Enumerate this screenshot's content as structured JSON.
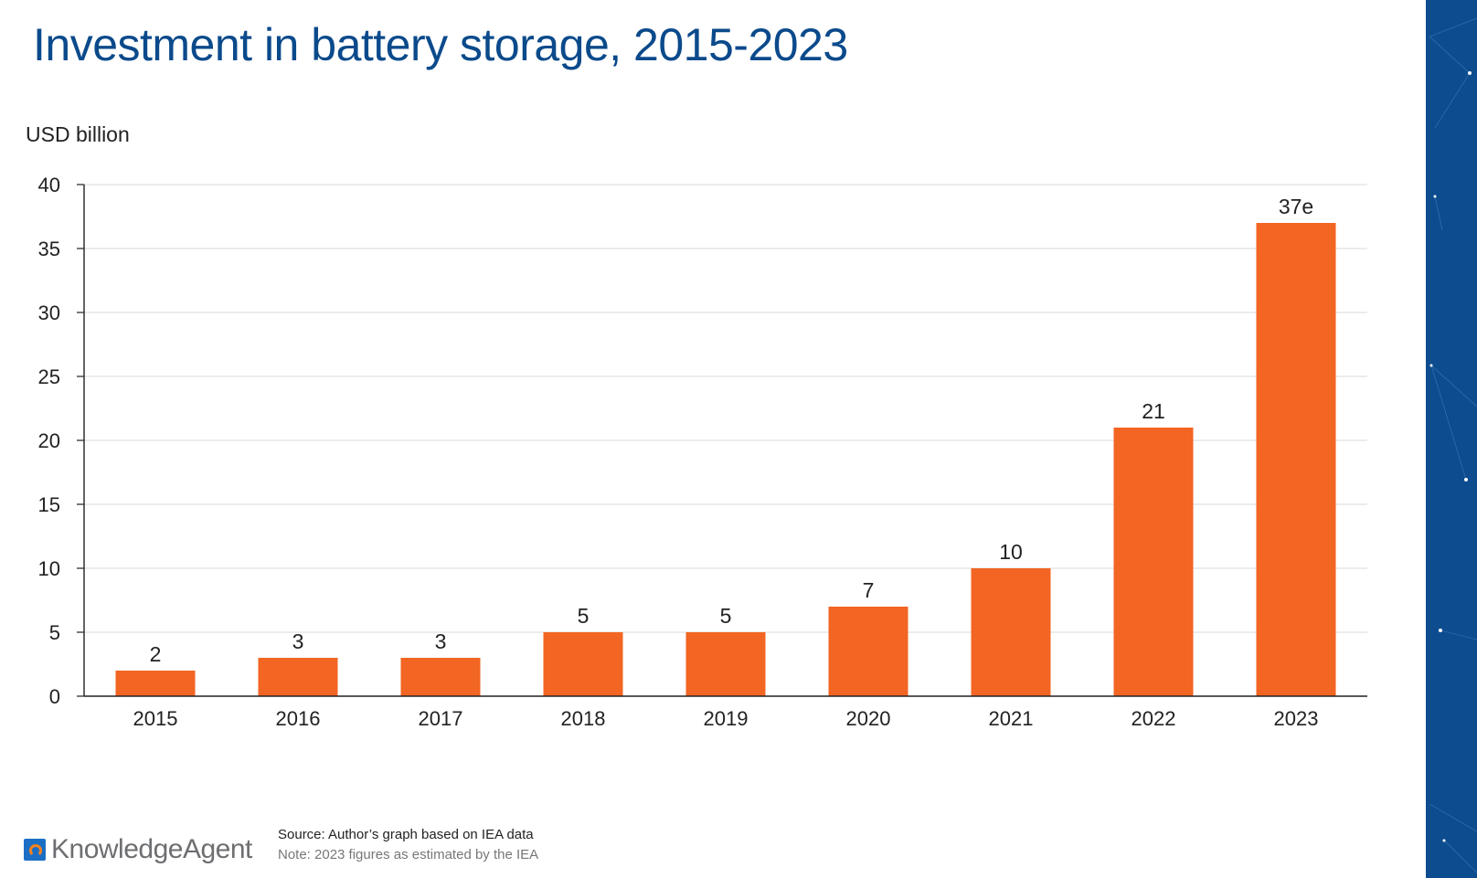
{
  "chart_data": {
    "type": "bar",
    "title": "Investment in battery storage, 2015-2023",
    "ylabel": "USD billion",
    "xlabel": "",
    "ylim": [
      0,
      40
    ],
    "yticks": [
      0,
      5,
      10,
      15,
      20,
      25,
      30,
      35,
      40
    ],
    "categories": [
      "2015",
      "2016",
      "2017",
      "2018",
      "2019",
      "2020",
      "2021",
      "2022",
      "2023"
    ],
    "values": [
      2,
      3,
      3,
      5,
      5,
      7,
      10,
      21,
      37
    ],
    "data_labels": [
      "2",
      "3",
      "3",
      "5",
      "5",
      "7",
      "10",
      "21",
      "37e"
    ],
    "bar_color": "#f26522",
    "grid": true,
    "legend": "none"
  },
  "footer": {
    "brand": "KnowledgeAgent",
    "source": "Source: Author’s graph based on IEA data",
    "note": "Note: 2023 figures as estimated by the IEA"
  },
  "colors": {
    "title": "#0b4a8b",
    "side_panel": "#0d4d8f",
    "logo_accent": "#f58220"
  }
}
